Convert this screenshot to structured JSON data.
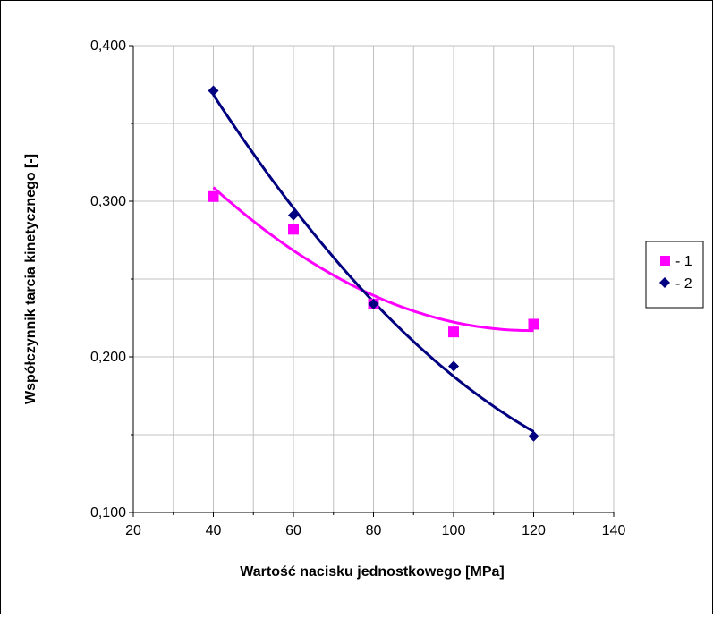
{
  "chart_data": {
    "type": "scatter",
    "title": "",
    "xlabel": "Wartość nacisku jednostkowego  [MPa]",
    "ylabel": "Współczynnik tarcia kinetycznego [-]",
    "xlim": [
      20,
      140
    ],
    "ylim": [
      0.1,
      0.4
    ],
    "x_ticks": [
      20,
      40,
      60,
      80,
      100,
      120,
      140
    ],
    "x_tick_labels": [
      "20",
      "40",
      "60",
      "80",
      "100",
      "120",
      "140"
    ],
    "y_ticks": [
      0.1,
      0.2,
      0.3,
      0.4
    ],
    "y_tick_labels": [
      "0,100",
      "0,200",
      "0,300",
      "0,400"
    ],
    "grid": true,
    "legend_position": "right",
    "series": [
      {
        "name": "- 1",
        "marker": "square",
        "color": "#ff00ff",
        "x": [
          40,
          60,
          80,
          100,
          120
        ],
        "y": [
          0.303,
          0.282,
          0.234,
          0.216,
          0.221
        ],
        "trendline": "polynomial"
      },
      {
        "name": "- 2",
        "marker": "diamond",
        "color": "#000080",
        "x": [
          40,
          60,
          80,
          100,
          120
        ],
        "y": [
          0.371,
          0.291,
          0.234,
          0.194,
          0.149
        ],
        "trendline": "polynomial"
      }
    ]
  }
}
